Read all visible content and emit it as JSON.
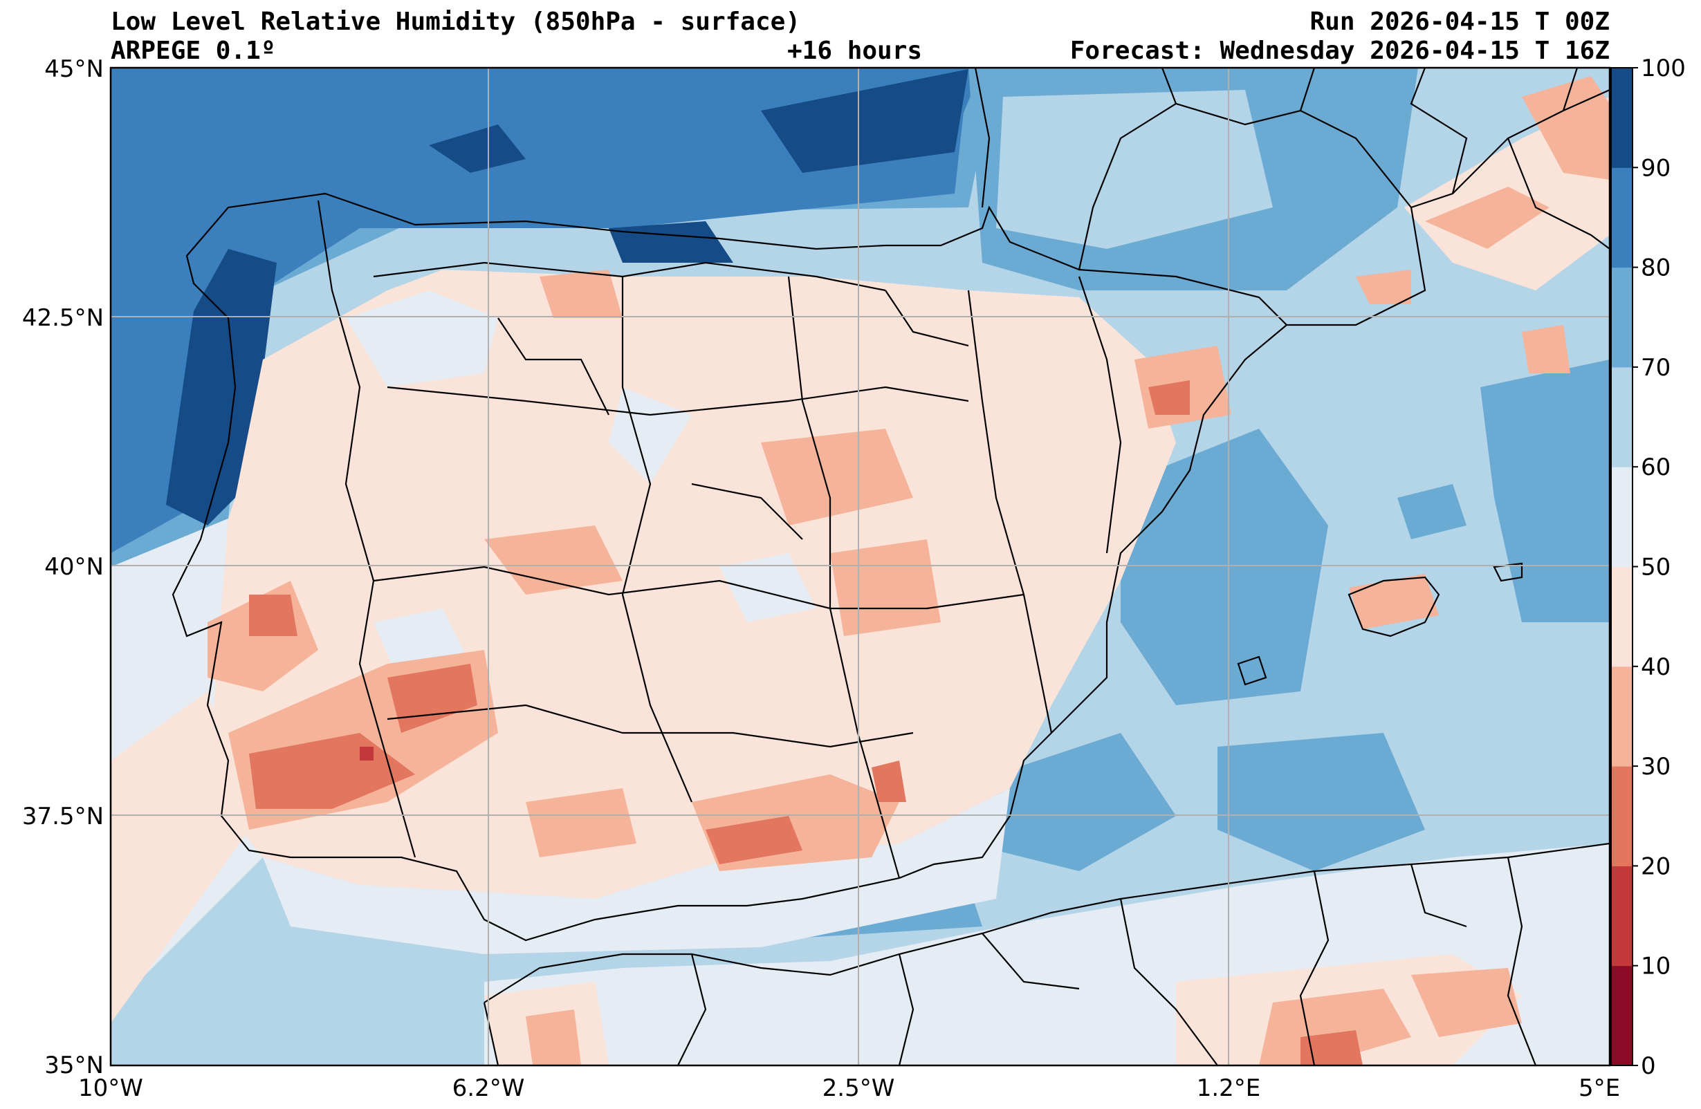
{
  "header": {
    "title": "Low Level Relative Humidity (850hPa - surface)",
    "model": "ARPEGE 0.1º",
    "lead_time": "+16 hours",
    "run": "Run 2026-04-15 T 00Z",
    "forecast": "Forecast: Wednesday 2026-04-15 T 16Z"
  },
  "map": {
    "lon_ticks": [
      "10°W",
      "6.2°W",
      "2.5°W",
      "1.2°E",
      "5°E"
    ],
    "lat_ticks": [
      "45°N",
      "42.5°N",
      "40°N",
      "37.5°N",
      "35°N"
    ],
    "lon_range": [
      -10,
      5
    ],
    "lat_range": [
      35,
      45
    ]
  },
  "colorbar": {
    "ticks": [
      "0",
      "10",
      "20",
      "30",
      "40",
      "50",
      "60",
      "70",
      "80",
      "90",
      "100"
    ],
    "levels": [
      0,
      10,
      20,
      30,
      40,
      50,
      60,
      70,
      80,
      90,
      100
    ],
    "colors": [
      "#8b0a26",
      "#c43a3a",
      "#e3765f",
      "#f5b39a",
      "#fae4da",
      "#e5ecf4",
      "#b4d5e8",
      "#6aaad3",
      "#3b80bc",
      "#154b86"
    ]
  }
}
